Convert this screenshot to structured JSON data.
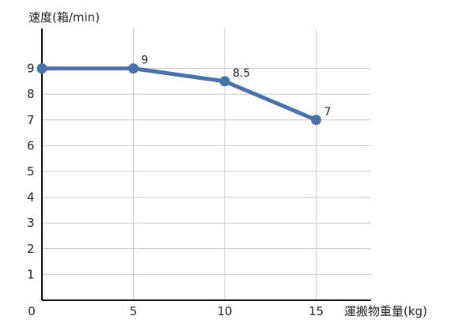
{
  "chart_data": {
    "type": "line",
    "ylabel": "速度(箱/min)",
    "xlabel": "運搬物重量(kg)",
    "x": [
      0,
      5,
      10,
      15
    ],
    "y": [
      9,
      9,
      8.5,
      7
    ],
    "data_labels": [
      "",
      "9",
      "8.5",
      "7"
    ],
    "x_ticks": [
      0,
      5,
      10,
      15
    ],
    "y_ticks": [
      1,
      2,
      3,
      4,
      5,
      6,
      7,
      8,
      9
    ],
    "xlim": [
      0,
      18
    ],
    "ylim": [
      0,
      11
    ],
    "grid": "vertical and horizontal",
    "line_color": "#4a72a8",
    "grid_color": "#c8c8c8",
    "axis_color": "#111111"
  }
}
